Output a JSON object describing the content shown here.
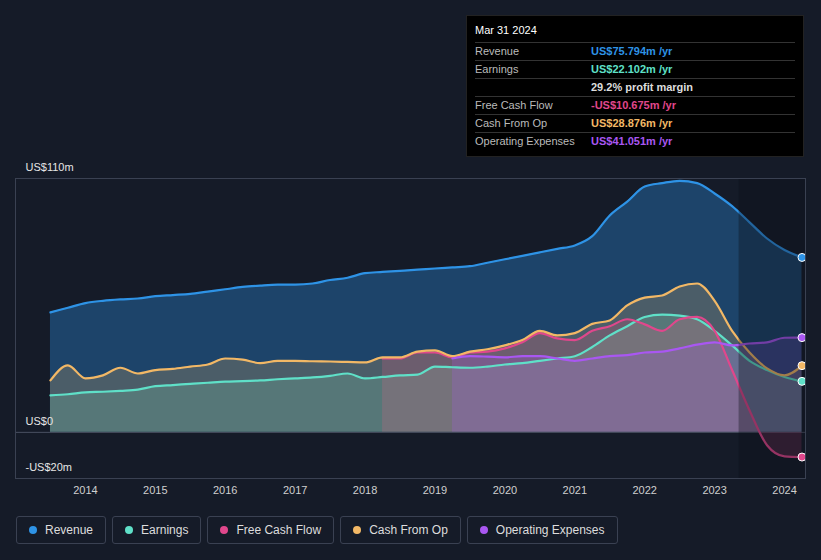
{
  "chart_data": {
    "type": "area",
    "x": [
      2013.5,
      2013.75,
      2014,
      2014.25,
      2014.5,
      2014.75,
      2015,
      2015.25,
      2015.5,
      2015.75,
      2016,
      2016.25,
      2016.5,
      2016.75,
      2017,
      2017.25,
      2017.5,
      2017.75,
      2018,
      2018.25,
      2018.5,
      2018.75,
      2019,
      2019.25,
      2019.5,
      2019.75,
      2020,
      2020.25,
      2020.5,
      2020.75,
      2021,
      2021.25,
      2021.5,
      2021.75,
      2022,
      2022.25,
      2022.5,
      2022.75,
      2023,
      2023.25,
      2023.5,
      2023.75,
      2024,
      2024.25
    ],
    "series": [
      {
        "name": "Revenue",
        "color": "#2e93e6",
        "values": [
          52,
          54,
          56,
          57,
          57.6,
          58,
          59,
          59.5,
          60,
          61,
          62,
          63,
          63.6,
          64,
          64,
          64.5,
          66,
          67,
          69,
          69.5,
          70,
          70.5,
          71,
          71.5,
          72,
          73.5,
          75,
          76.5,
          78,
          79.5,
          81,
          85,
          94,
          100,
          106.5,
          108,
          109,
          108,
          103.5,
          98,
          91,
          84,
          79,
          75.8
        ]
      },
      {
        "name": "Earnings",
        "color": "#5fe0c8",
        "values": [
          16,
          16.5,
          17.3,
          17.6,
          18,
          18.5,
          20,
          20.5,
          21,
          21.5,
          22,
          22.2,
          22.5,
          23,
          23.4,
          23.8,
          24.5,
          25.5,
          23.4,
          24,
          24.7,
          25,
          28.5,
          28.2,
          28,
          28.5,
          29.4,
          30,
          31,
          32,
          33,
          37,
          42,
          46,
          50,
          51,
          50.6,
          49,
          44,
          37.7,
          31,
          27,
          24,
          22.1
        ]
      },
      {
        "name": "Free Cash Flow",
        "color": "#e0478c",
        "values": [
          null,
          null,
          null,
          null,
          null,
          null,
          null,
          null,
          null,
          null,
          null,
          null,
          null,
          null,
          null,
          null,
          null,
          null,
          null,
          32,
          32,
          34.6,
          34.6,
          32.5,
          34.6,
          35,
          36.4,
          39,
          43,
          40.7,
          40,
          44,
          46,
          49,
          46.8,
          44,
          49,
          50,
          44,
          27,
          9.5,
          -5.6,
          -10.4,
          -10.7
        ]
      },
      {
        "name": "Cash From Op",
        "color": "#f2b866",
        "values": [
          22.5,
          29,
          23.4,
          24.7,
          28,
          25.5,
          27,
          27.5,
          28.5,
          29.4,
          32,
          31.5,
          30,
          31,
          31,
          30.8,
          30.7,
          30.5,
          30.3,
          32.5,
          32.5,
          35,
          35.5,
          33,
          35,
          36,
          37.7,
          40,
          44,
          42,
          43,
          47,
          48.5,
          55,
          58.4,
          59.3,
          63.2,
          64.5,
          57,
          44,
          34.6,
          27.7,
          24.7,
          28.9
        ]
      },
      {
        "name": "Operating Expenses",
        "color": "#a957f2",
        "values": [
          null,
          null,
          null,
          null,
          null,
          null,
          null,
          null,
          null,
          null,
          null,
          null,
          null,
          null,
          null,
          null,
          null,
          null,
          null,
          null,
          null,
          null,
          null,
          32,
          33,
          32.8,
          32.5,
          33,
          33,
          32,
          31,
          32,
          33,
          33.5,
          34.6,
          35,
          36.4,
          38,
          39,
          37.7,
          38.5,
          39,
          41,
          41.05
        ]
      }
    ],
    "xlim": [
      2013.0,
      2024.3
    ],
    "xticks": [
      2014,
      2015,
      2016,
      2017,
      2018,
      2019,
      2020,
      2021,
      2022,
      2023,
      2024
    ],
    "ylim": [
      -20,
      110
    ],
    "yticks": [
      {
        "value": 110,
        "label": "US$110m"
      },
      {
        "value": 0,
        "label": "US$0"
      },
      {
        "value": -20,
        "label": "-US$20m"
      }
    ],
    "grid": true,
    "legend": "bottom-left",
    "marker": "circle",
    "shaded_x": [
      2023.35,
      2024.3
    ],
    "tooltip": {
      "title": "Mar 31 2024",
      "rows": [
        {
          "label": "Revenue",
          "value": "US$75.794m /yr"
        },
        {
          "label": "Earnings",
          "value": "US$22.102m /yr"
        },
        {
          "label": "Free Cash Flow",
          "value": "-US$10.675m /yr"
        },
        {
          "label": "Cash From Op",
          "value": "US$28.876m /yr"
        },
        {
          "label": "Operating Expenses",
          "value": "US$41.051m /yr"
        }
      ],
      "note": "29.2% profit margin"
    }
  }
}
